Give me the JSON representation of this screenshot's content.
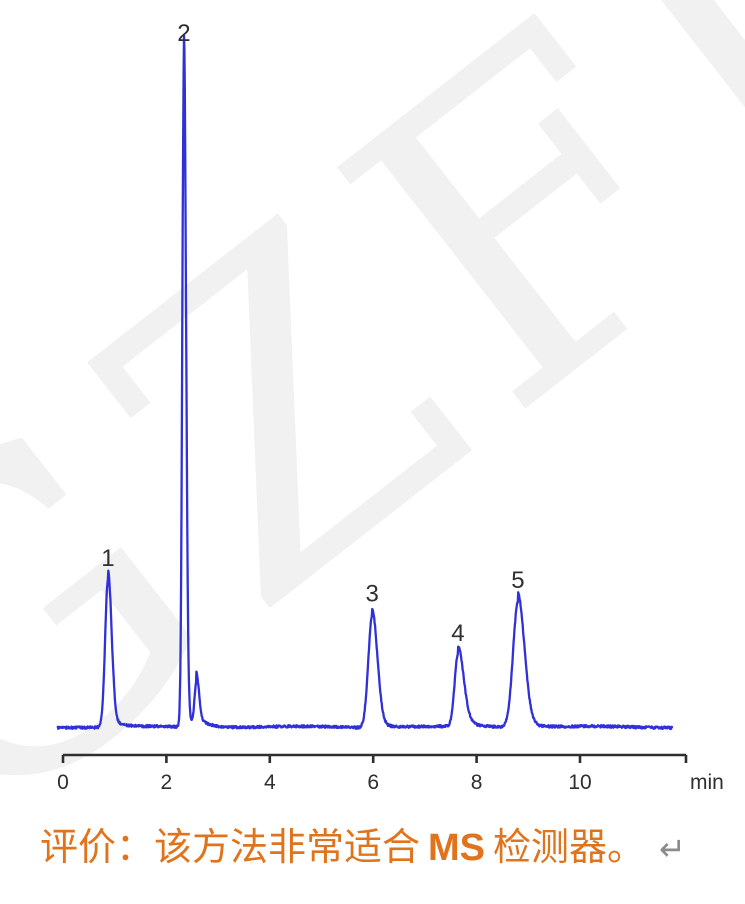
{
  "watermark": {
    "text": "GZFLU"
  },
  "colors": {
    "trace_blue": "#3030d8",
    "axis_dark": "#2f2f2f",
    "accent_orange": "#e0741c",
    "return_gray": "#8c8c8c",
    "watermark_gray": "#f0f0f0"
  },
  "chart_data": {
    "type": "line",
    "title": "",
    "xlabel": "min",
    "ylabel": "",
    "grid": false,
    "legend": "none",
    "x_axis": {
      "ticks": [
        0,
        2,
        4,
        6,
        8,
        10
      ],
      "range": [
        0,
        12.05
      ],
      "unit_label": "min"
    },
    "y_axis": {
      "visible": false,
      "relative_scale": "peak 2 = 100"
    },
    "trace_color": "#3030d8",
    "trace_time_range": [
      -0.1,
      11.78
    ],
    "peaks": [
      {
        "label": "1",
        "retention_time": 0.87,
        "relative_height": 21.9,
        "sigma_left": 0.055,
        "sigma_right": 0.07,
        "tail_height": 1.6,
        "tail_tau": 0.18
      },
      {
        "label": "2",
        "retention_time": 2.34,
        "relative_height": 100,
        "sigma_left": 0.032,
        "sigma_right": 0.04,
        "tail_height": 3.0,
        "tail_tau": 0.12
      },
      {
        "label": "",
        "retention_time": 2.58,
        "relative_height": 6.3,
        "sigma_left": 0.035,
        "sigma_right": 0.05,
        "tail_height": 1.4,
        "tail_tau": 0.22
      },
      {
        "label": "3",
        "retention_time": 5.98,
        "relative_height": 16.6,
        "sigma_left": 0.075,
        "sigma_right": 0.1,
        "tail_height": 1.2,
        "tail_tau": 0.2
      },
      {
        "label": "4",
        "retention_time": 7.64,
        "relative_height": 10.7,
        "sigma_left": 0.065,
        "sigma_right": 0.11,
        "tail_height": 1.3,
        "tail_tau": 0.26
      },
      {
        "label": "5",
        "retention_time": 8.8,
        "relative_height": 18.6,
        "sigma_left": 0.095,
        "sigma_right": 0.125,
        "tail_height": 1.4,
        "tail_tau": 0.24
      }
    ]
  },
  "caption": {
    "prefix": "评价：该方法非常适合",
    "highlight": "MS",
    "suffix": "检测器。",
    "return_symbol": "↵"
  }
}
